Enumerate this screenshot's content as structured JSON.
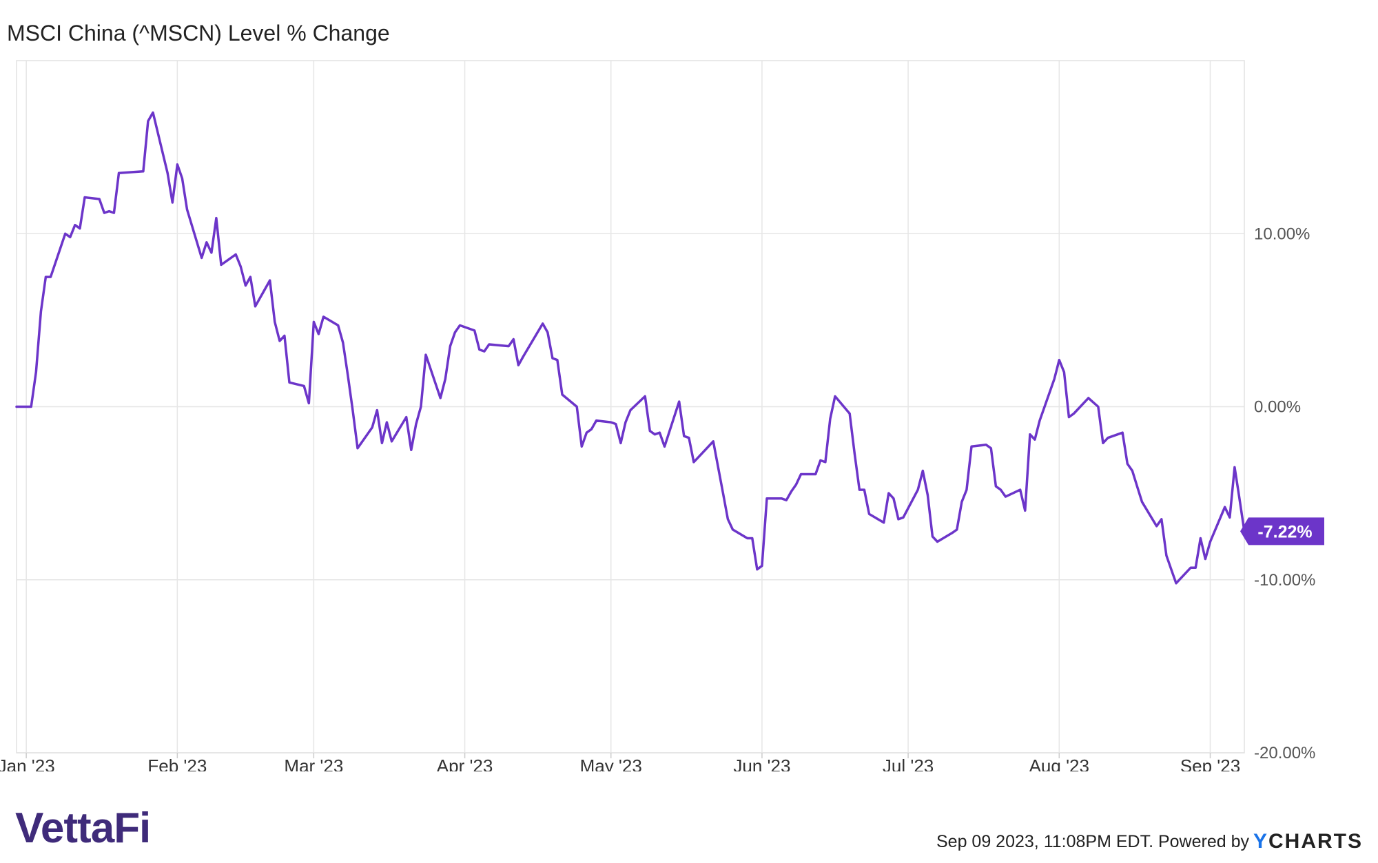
{
  "chart_data": {
    "type": "line",
    "title": "MSCI China (^MSCN) Level % Change",
    "xlabel": "",
    "ylabel": "",
    "x_range": [
      "2022-12-30",
      "2023-09-08"
    ],
    "ylim": [
      -20,
      20
    ],
    "y_ticks": [
      {
        "value": 10,
        "label": "10.00%"
      },
      {
        "value": 0,
        "label": "0.00%"
      },
      {
        "value": -10,
        "label": "-10.00%"
      },
      {
        "value": -20,
        "label": "-20.00%"
      }
    ],
    "x_ticks": [
      {
        "date": "2023-01-01",
        "label": "Jan '23"
      },
      {
        "date": "2023-02-01",
        "label": "Feb '23"
      },
      {
        "date": "2023-03-01",
        "label": "Mar '23"
      },
      {
        "date": "2023-04-01",
        "label": "Apr '23"
      },
      {
        "date": "2023-05-01",
        "label": "May '23"
      },
      {
        "date": "2023-06-01",
        "label": "Jun '23"
      },
      {
        "date": "2023-07-01",
        "label": "Jul '23"
      },
      {
        "date": "2023-08-01",
        "label": "Aug '23"
      },
      {
        "date": "2023-09-01",
        "label": "Sep '23"
      }
    ],
    "grid": true,
    "series_color": "#6c35c9",
    "series": [
      {
        "points": [
          [
            "2022-12-30",
            0.0
          ],
          [
            "2023-01-02",
            0.0
          ],
          [
            "2023-01-03",
            2.0
          ],
          [
            "2023-01-04",
            5.5
          ],
          [
            "2023-01-05",
            7.5
          ],
          [
            "2023-01-06",
            7.5
          ],
          [
            "2023-01-09",
            10.0
          ],
          [
            "2023-01-10",
            9.8
          ],
          [
            "2023-01-11",
            10.5
          ],
          [
            "2023-01-12",
            10.3
          ],
          [
            "2023-01-13",
            12.1
          ],
          [
            "2023-01-16",
            12.0
          ],
          [
            "2023-01-17",
            11.2
          ],
          [
            "2023-01-18",
            11.3
          ],
          [
            "2023-01-19",
            11.2
          ],
          [
            "2023-01-20",
            13.5
          ],
          [
            "2023-01-25",
            13.6
          ],
          [
            "2023-01-26",
            16.5
          ],
          [
            "2023-01-27",
            17.0
          ],
          [
            "2023-01-30",
            13.5
          ],
          [
            "2023-01-31",
            11.8
          ],
          [
            "2023-02-01",
            14.0
          ],
          [
            "2023-02-02",
            13.2
          ],
          [
            "2023-02-03",
            11.4
          ],
          [
            "2023-02-06",
            8.6
          ],
          [
            "2023-02-07",
            9.5
          ],
          [
            "2023-02-08",
            8.9
          ],
          [
            "2023-02-09",
            10.9
          ],
          [
            "2023-02-10",
            8.2
          ],
          [
            "2023-02-13",
            8.8
          ],
          [
            "2023-02-14",
            8.1
          ],
          [
            "2023-02-15",
            7.0
          ],
          [
            "2023-02-16",
            7.5
          ],
          [
            "2023-02-17",
            5.8
          ],
          [
            "2023-02-20",
            7.3
          ],
          [
            "2023-02-21",
            4.9
          ],
          [
            "2023-02-22",
            3.8
          ],
          [
            "2023-02-23",
            4.1
          ],
          [
            "2023-02-24",
            1.4
          ],
          [
            "2023-02-27",
            1.2
          ],
          [
            "2023-02-28",
            0.2
          ],
          [
            "2023-03-01",
            4.9
          ],
          [
            "2023-03-02",
            4.2
          ],
          [
            "2023-03-03",
            5.2
          ],
          [
            "2023-03-06",
            4.7
          ],
          [
            "2023-03-07",
            3.7
          ],
          [
            "2023-03-08",
            1.8
          ],
          [
            "2023-03-09",
            -0.2
          ],
          [
            "2023-03-10",
            -2.4
          ],
          [
            "2023-03-13",
            -1.2
          ],
          [
            "2023-03-14",
            -0.2
          ],
          [
            "2023-03-15",
            -2.1
          ],
          [
            "2023-03-16",
            -0.9
          ],
          [
            "2023-03-17",
            -2.0
          ],
          [
            "2023-03-20",
            -0.6
          ],
          [
            "2023-03-21",
            -2.5
          ],
          [
            "2023-03-22",
            -1.0
          ],
          [
            "2023-03-23",
            0.0
          ],
          [
            "2023-03-24",
            3.0
          ],
          [
            "2023-03-27",
            0.5
          ],
          [
            "2023-03-28",
            1.6
          ],
          [
            "2023-03-29",
            3.5
          ],
          [
            "2023-03-30",
            4.3
          ],
          [
            "2023-03-31",
            4.7
          ],
          [
            "2023-04-03",
            4.4
          ],
          [
            "2023-04-04",
            3.3
          ],
          [
            "2023-04-05",
            3.2
          ],
          [
            "2023-04-06",
            3.6
          ],
          [
            "2023-04-10",
            3.5
          ],
          [
            "2023-04-11",
            3.9
          ],
          [
            "2023-04-12",
            2.4
          ],
          [
            "2023-04-13",
            2.9
          ],
          [
            "2023-04-17",
            4.8
          ],
          [
            "2023-04-18",
            4.3
          ],
          [
            "2023-04-19",
            2.8
          ],
          [
            "2023-04-20",
            2.7
          ],
          [
            "2023-04-21",
            0.7
          ],
          [
            "2023-04-24",
            0.0
          ],
          [
            "2023-04-25",
            -2.3
          ],
          [
            "2023-04-26",
            -1.5
          ],
          [
            "2023-04-27",
            -1.3
          ],
          [
            "2023-04-28",
            -0.8
          ],
          [
            "2023-05-01",
            -0.9
          ],
          [
            "2023-05-02",
            -1.0
          ],
          [
            "2023-05-03",
            -2.1
          ],
          [
            "2023-05-04",
            -0.9
          ],
          [
            "2023-05-05",
            -0.2
          ],
          [
            "2023-05-08",
            0.6
          ],
          [
            "2023-05-09",
            -1.4
          ],
          [
            "2023-05-10",
            -1.6
          ],
          [
            "2023-05-11",
            -1.5
          ],
          [
            "2023-05-12",
            -2.3
          ],
          [
            "2023-05-15",
            0.3
          ],
          [
            "2023-05-16",
            -1.7
          ],
          [
            "2023-05-17",
            -1.8
          ],
          [
            "2023-05-18",
            -3.2
          ],
          [
            "2023-05-19",
            -2.9
          ],
          [
            "2023-05-22",
            -2.0
          ],
          [
            "2023-05-23",
            -3.5
          ],
          [
            "2023-05-24",
            -5.0
          ],
          [
            "2023-05-25",
            -6.5
          ],
          [
            "2023-05-26",
            -7.1
          ],
          [
            "2023-05-29",
            -7.6
          ],
          [
            "2023-05-30",
            -7.6
          ],
          [
            "2023-05-31",
            -9.4
          ],
          [
            "2023-06-01",
            -9.2
          ],
          [
            "2023-06-02",
            -5.3
          ],
          [
            "2023-06-05",
            -5.3
          ],
          [
            "2023-06-06",
            -5.4
          ],
          [
            "2023-06-07",
            -4.9
          ],
          [
            "2023-06-08",
            -4.5
          ],
          [
            "2023-06-09",
            -3.9
          ],
          [
            "2023-06-12",
            -3.9
          ],
          [
            "2023-06-13",
            -3.1
          ],
          [
            "2023-06-14",
            -3.2
          ],
          [
            "2023-06-15",
            -0.7
          ],
          [
            "2023-06-16",
            0.6
          ],
          [
            "2023-06-19",
            -0.4
          ],
          [
            "2023-06-20",
            -2.7
          ],
          [
            "2023-06-21",
            -4.8
          ],
          [
            "2023-06-22",
            -4.8
          ],
          [
            "2023-06-23",
            -6.2
          ],
          [
            "2023-06-26",
            -6.7
          ],
          [
            "2023-06-27",
            -5.0
          ],
          [
            "2023-06-28",
            -5.3
          ],
          [
            "2023-06-29",
            -6.5
          ],
          [
            "2023-06-30",
            -6.4
          ],
          [
            "2023-07-03",
            -4.8
          ],
          [
            "2023-07-04",
            -3.7
          ],
          [
            "2023-07-05",
            -5.1
          ],
          [
            "2023-07-06",
            -7.5
          ],
          [
            "2023-07-07",
            -7.8
          ],
          [
            "2023-07-10",
            -7.3
          ],
          [
            "2023-07-11",
            -7.1
          ],
          [
            "2023-07-12",
            -5.5
          ],
          [
            "2023-07-13",
            -4.8
          ],
          [
            "2023-07-14",
            -2.3
          ],
          [
            "2023-07-17",
            -2.2
          ],
          [
            "2023-07-18",
            -2.4
          ],
          [
            "2023-07-19",
            -4.6
          ],
          [
            "2023-07-20",
            -4.8
          ],
          [
            "2023-07-21",
            -5.2
          ],
          [
            "2023-07-24",
            -4.8
          ],
          [
            "2023-07-25",
            -6.0
          ],
          [
            "2023-07-26",
            -1.6
          ],
          [
            "2023-07-27",
            -1.9
          ],
          [
            "2023-07-28",
            -0.8
          ],
          [
            "2023-07-31",
            1.6
          ],
          [
            "2023-08-01",
            2.7
          ],
          [
            "2023-08-02",
            2.0
          ],
          [
            "2023-08-03",
            -0.6
          ],
          [
            "2023-08-04",
            -0.4
          ],
          [
            "2023-08-07",
            0.5
          ],
          [
            "2023-08-09",
            0.0
          ],
          [
            "2023-08-10",
            -2.1
          ],
          [
            "2023-08-11",
            -1.8
          ],
          [
            "2023-08-14",
            -1.5
          ],
          [
            "2023-08-15",
            -3.3
          ],
          [
            "2023-08-16",
            -3.7
          ],
          [
            "2023-08-17",
            -4.6
          ],
          [
            "2023-08-18",
            -5.5
          ],
          [
            "2023-08-21",
            -6.9
          ],
          [
            "2023-08-22",
            -6.5
          ],
          [
            "2023-08-23",
            -8.6
          ],
          [
            "2023-08-24",
            -9.4
          ],
          [
            "2023-08-25",
            -10.2
          ],
          [
            "2023-08-28",
            -9.3
          ],
          [
            "2023-08-29",
            -9.3
          ],
          [
            "2023-08-30",
            -7.6
          ],
          [
            "2023-08-31",
            -8.8
          ],
          [
            "2023-09-01",
            -7.8
          ],
          [
            "2023-09-04",
            -5.8
          ],
          [
            "2023-09-05",
            -6.4
          ],
          [
            "2023-09-06",
            -3.5
          ],
          [
            "2023-09-07",
            -5.3
          ],
          [
            "2023-09-08",
            -7.2
          ]
        ]
      }
    ],
    "last_value_label": "-7.22%"
  },
  "brand": {
    "logo_text": "VettaFi",
    "logo_color": "#3f2b7a"
  },
  "footer": {
    "timestamp_note": "Sep 09 2023, 11:08PM EDT. Powered by",
    "provider_logo_y": "Y",
    "provider_logo_rest": "CHARTS"
  }
}
